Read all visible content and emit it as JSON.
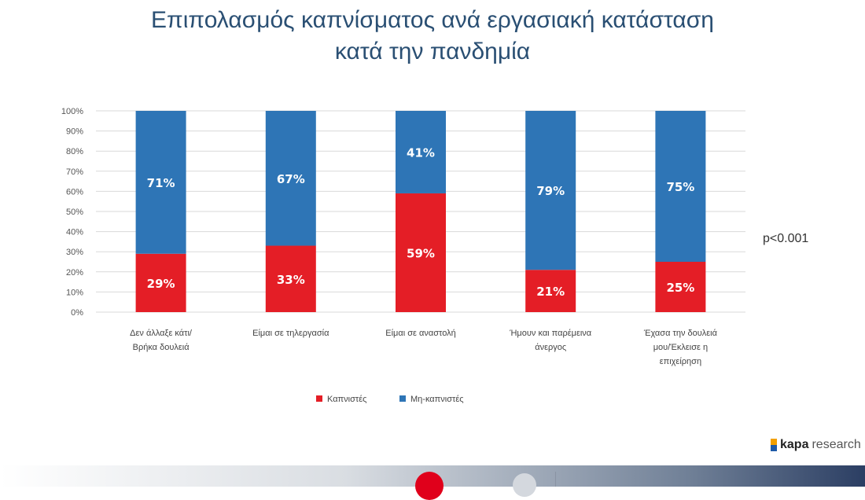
{
  "title_line1": "Επιπολασμός καπνίσματος ανά εργασιακή κατάσταση",
  "title_line2": "κατά την πανδημία",
  "p_value": "p<0.001",
  "brand": {
    "strong": "kapa",
    "rest": "research"
  },
  "colors": {
    "smokers": "#e41e26",
    "nonsmokers": "#2e75b6",
    "title": "#2a4f73",
    "grid": "#d9d9d9"
  },
  "chart_data": {
    "type": "bar",
    "stacked": true,
    "categories": [
      [
        "Δεν άλλαξε κάτι/",
        "Βρήκα δουλειά"
      ],
      [
        "Είμαι σε τηλεργασία"
      ],
      [
        "Είμαι σε αναστολή"
      ],
      [
        "Ήμουν και παρέμεινα",
        "άνεργος"
      ],
      [
        "Έχασα την δουλειά",
        "μου/Έκλεισε η",
        "επιχείρηση"
      ]
    ],
    "series": [
      {
        "name": "Καπνιστές",
        "values": [
          29,
          33,
          59,
          21,
          25
        ],
        "labels": [
          "29%",
          "33%",
          "59%",
          "21%",
          "25%"
        ]
      },
      {
        "name": "Μη-καπνιστές",
        "values": [
          71,
          67,
          41,
          79,
          75
        ],
        "labels": [
          "71%",
          "67%",
          "41%",
          "79%",
          "75%"
        ]
      }
    ],
    "ylim": [
      0,
      100
    ],
    "yticks": [
      "0%",
      "10%",
      "20%",
      "30%",
      "40%",
      "50%",
      "60%",
      "70%",
      "80%",
      "90%",
      "100%"
    ],
    "grid": true,
    "legend_position": "bottom"
  }
}
